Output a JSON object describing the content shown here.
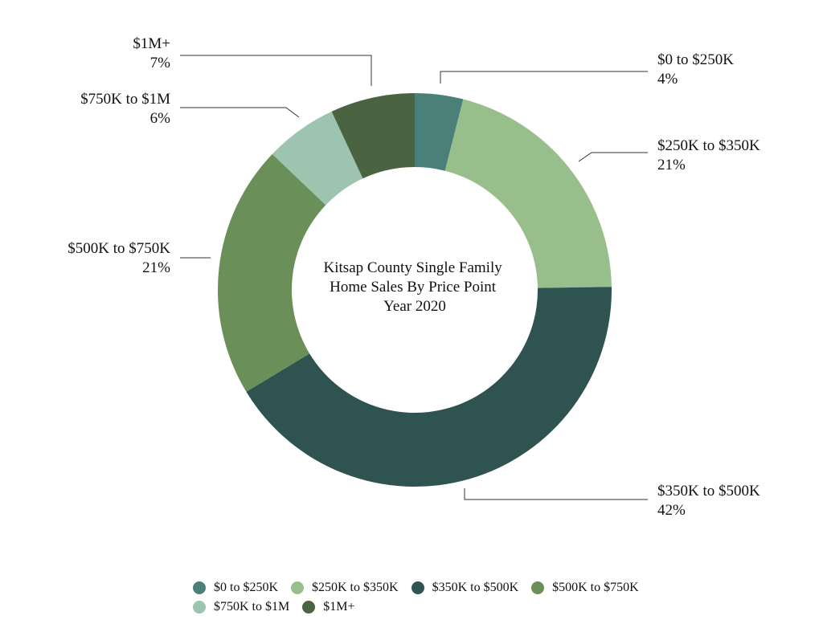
{
  "chart_data": {
    "type": "pie",
    "title": "Kitsap County Single Family Home Sales By Price Point Year 2020",
    "title_lines": [
      "Kitsap County Single Family",
      "Home Sales By Price Point",
      "Year 2020"
    ],
    "donut": true,
    "categories": [
      "$0 to $250K",
      "$250K to $350K",
      "$350K to $500K",
      "$500K to $750K",
      "$750K to $1M",
      "$1M+"
    ],
    "values": [
      4,
      21,
      42,
      21,
      6,
      7
    ],
    "value_labels": [
      "4%",
      "21%",
      "42%",
      "21%",
      "6%",
      "7%"
    ],
    "colors": [
      "#4a8079",
      "#98bf8b",
      "#2e5351",
      "#6b8f59",
      "#9cc4af",
      "#4a6340"
    ],
    "legend_placement": "bottom",
    "legend_rows": [
      [
        0,
        1,
        2,
        3
      ],
      [
        4,
        5
      ]
    ]
  }
}
